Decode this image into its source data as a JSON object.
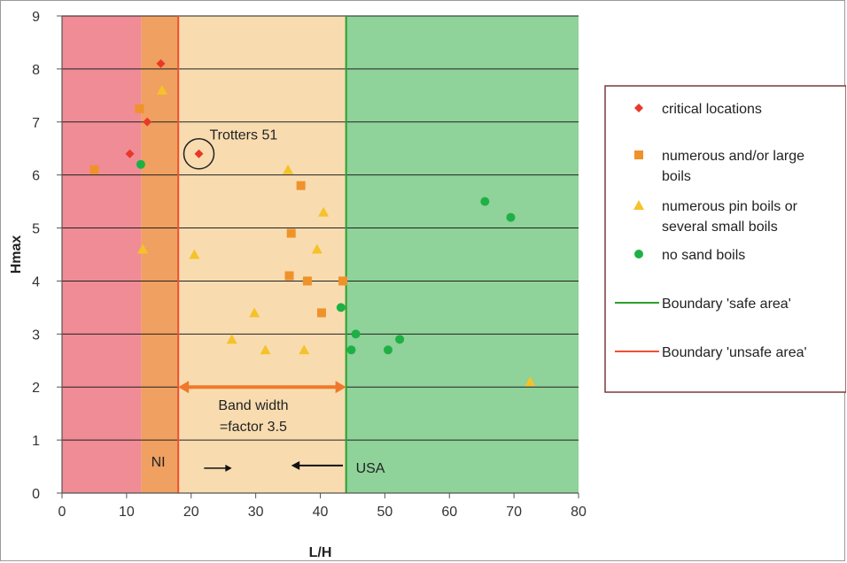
{
  "chart_data": {
    "type": "scatter",
    "xlabel": "L/H",
    "ylabel": "Hmax",
    "xlim": [
      0,
      80
    ],
    "ylim": [
      0,
      9
    ],
    "x_ticks": [
      0,
      10,
      20,
      30,
      40,
      50,
      60,
      70,
      80
    ],
    "y_ticks": [
      0,
      1,
      2,
      3,
      4,
      5,
      6,
      7,
      8,
      9
    ],
    "grid": "horizontal",
    "legend_position": "right",
    "regions": [
      {
        "name": "unsafe",
        "x": [
          0,
          12.3
        ],
        "color": "#f08c96"
      },
      {
        "name": "NI band",
        "x": [
          12.3,
          18
        ],
        "color": "#f0a060"
      },
      {
        "name": "transition",
        "x": [
          18,
          44
        ],
        "color": "#f8dcb0"
      },
      {
        "name": "safe",
        "x": [
          44,
          80
        ],
        "color": "#8fd29a"
      }
    ],
    "boundaries": [
      {
        "name": "Boundary 'safe area'",
        "x": 44,
        "color": "#2ca02c"
      },
      {
        "name": "Boundary 'unsafe area'",
        "x": 18,
        "color": "#f05030"
      }
    ],
    "series": [
      {
        "name": "critical locations",
        "marker": "diamond",
        "color": "#e8382a",
        "points": [
          [
            15.3,
            8.1
          ],
          [
            13.2,
            7.0
          ],
          [
            10.5,
            6.4
          ],
          [
            21.2,
            6.4
          ]
        ]
      },
      {
        "name": "numerous and/or large boils",
        "marker": "square",
        "color": "#f0922a",
        "points": [
          [
            12.0,
            7.25
          ],
          [
            5.0,
            6.1
          ],
          [
            37.0,
            5.8
          ],
          [
            35.5,
            4.9
          ],
          [
            35.2,
            4.1
          ],
          [
            38.0,
            4.0
          ],
          [
            43.5,
            4.0
          ],
          [
            40.2,
            3.4
          ]
        ]
      },
      {
        "name": "numerous pin boils or several small boils",
        "marker": "triangle",
        "color": "#f5c22a",
        "points": [
          [
            15.5,
            7.6
          ],
          [
            35.0,
            6.1
          ],
          [
            40.5,
            5.3
          ],
          [
            12.5,
            4.6
          ],
          [
            20.5,
            4.5
          ],
          [
            39.5,
            4.6
          ],
          [
            29.8,
            3.4
          ],
          [
            26.3,
            2.9
          ],
          [
            31.5,
            2.7
          ],
          [
            37.5,
            2.7
          ],
          [
            72.5,
            2.1
          ]
        ]
      },
      {
        "name": "no sand boils",
        "marker": "circle",
        "color": "#1fb045",
        "points": [
          [
            12.2,
            6.2
          ],
          [
            65.5,
            5.5
          ],
          [
            69.5,
            5.2
          ],
          [
            43.2,
            3.5
          ],
          [
            45.5,
            3.0
          ],
          [
            44.8,
            2.7
          ],
          [
            50.5,
            2.7
          ],
          [
            52.3,
            2.9
          ]
        ]
      }
    ],
    "annotations": {
      "trotters": {
        "text": "Trotters 51",
        "x": 21.2,
        "y": 6.4
      },
      "band_width_line1": "Band width",
      "band_width_line2": "=factor 3.5",
      "band_x": [
        18,
        44
      ],
      "band_y": 2,
      "ni_label": "NI",
      "usa_label": "USA"
    },
    "legend": [
      {
        "marker": "diamond",
        "color": "#e8382a",
        "lines": [
          "critical locations"
        ]
      },
      {
        "marker": "square",
        "color": "#f0922a",
        "lines": [
          "numerous and/or large",
          "boils"
        ]
      },
      {
        "marker": "triangle",
        "color": "#f5c22a",
        "lines": [
          "numerous pin boils or",
          "several small boils"
        ]
      },
      {
        "marker": "circle",
        "color": "#1fb045",
        "lines": [
          "no sand boils"
        ]
      },
      {
        "marker": "line",
        "color": "#2ca02c",
        "lines": [
          "Boundary 'safe area'"
        ]
      },
      {
        "marker": "line",
        "color": "#f05030",
        "lines": [
          "Boundary 'unsafe area'"
        ]
      }
    ]
  }
}
